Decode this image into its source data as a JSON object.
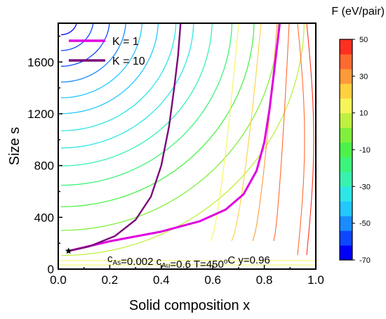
{
  "chart_data": {
    "type": "contour",
    "xlabel": "Solid composition x",
    "ylabel": "Size s",
    "xlim": [
      0.0,
      1.0
    ],
    "ylim": [
      0,
      1900
    ],
    "x_ticks": [
      "0.0",
      "0.2",
      "0.4",
      "0.6",
      "0.8",
      "1.0"
    ],
    "y_ticks": [
      "0",
      "400",
      "800",
      "1200",
      "1600"
    ],
    "colorbar": {
      "title": "F (eV/pair)",
      "range": [
        -70,
        50
      ],
      "step": 10,
      "tick_labels": [
        "50",
        "30",
        "10",
        "-10",
        "-30",
        "-50",
        "-70"
      ],
      "tick_values": [
        50,
        30,
        10,
        -10,
        -30,
        -50,
        -70
      ],
      "colors": [
        "#0000ff",
        "#0d47ff",
        "#1a8cff",
        "#22c8ff",
        "#2ee6e6",
        "#39f2b0",
        "#3df47a",
        "#4cf24a",
        "#80f03c",
        "#c0f040",
        "#f5f55a",
        "#ffd040",
        "#ff9a3a",
        "#ff6a30",
        "#ff3020"
      ]
    },
    "series": [
      {
        "name": "K = 1",
        "color": "#e000e0",
        "points": [
          [
            0.04,
            140
          ],
          [
            0.2,
            215
          ],
          [
            0.4,
            290
          ],
          [
            0.55,
            370
          ],
          [
            0.65,
            460
          ],
          [
            0.72,
            580
          ],
          [
            0.77,
            760
          ],
          [
            0.8,
            980
          ],
          [
            0.82,
            1230
          ],
          [
            0.84,
            1560
          ],
          [
            0.86,
            1900
          ]
        ]
      },
      {
        "name": "K = 10",
        "color": "#7a0a7a",
        "points": [
          [
            0.04,
            140
          ],
          [
            0.12,
            175
          ],
          [
            0.22,
            255
          ],
          [
            0.3,
            380
          ],
          [
            0.36,
            560
          ],
          [
            0.4,
            800
          ],
          [
            0.43,
            1100
          ],
          [
            0.45,
            1400
          ],
          [
            0.465,
            1650
          ],
          [
            0.475,
            1900
          ]
        ]
      }
    ],
    "annotation": {
      "marker": "star",
      "x": 0.04,
      "y": 140,
      "text_parts": [
        {
          "t": "c",
          "sub": false
        },
        {
          "t": "As",
          "sub": true
        },
        {
          "t": "=0.002 c",
          "sub": false
        },
        {
          "t": "Au",
          "sub": true
        },
        {
          "t": "=0.6 T=450",
          "sub": false
        },
        {
          "t": "o",
          "sup": true
        },
        {
          "t": "C y=0.96",
          "sub": false
        }
      ]
    },
    "grid": false,
    "legend_position": "top-left"
  }
}
